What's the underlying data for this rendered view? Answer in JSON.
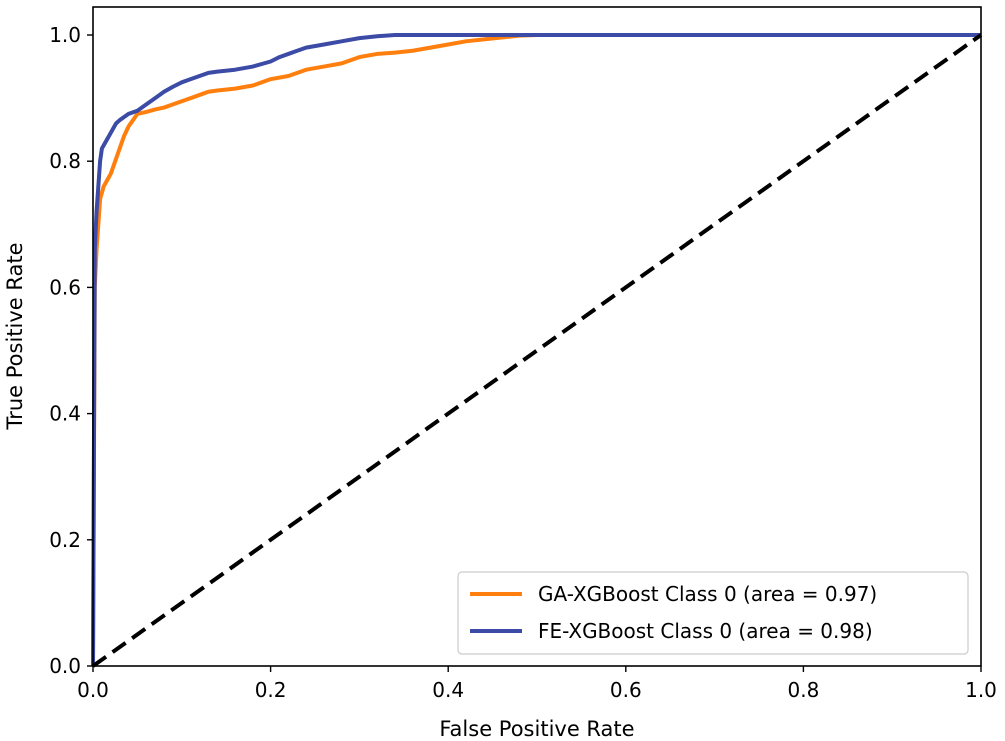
{
  "chart_data": {
    "type": "line",
    "title": "",
    "xlabel": "False Positive Rate",
    "ylabel": "True Positive Rate",
    "xlim": [
      0.0,
      1.0
    ],
    "ylim": [
      0.0,
      1.0
    ],
    "grid": false,
    "legend_position": "lower-right",
    "x_ticks": [
      "0.0",
      "0.2",
      "0.4",
      "0.6",
      "0.8",
      "1.0"
    ],
    "y_ticks": [
      "0.0",
      "0.2",
      "0.4",
      "0.6",
      "0.8",
      "1.0"
    ],
    "x_tick_values": [
      0.0,
      0.2,
      0.4,
      0.6,
      0.8,
      1.0
    ],
    "y_tick_values": [
      0.0,
      0.2,
      0.4,
      0.6,
      0.8,
      1.0
    ],
    "series": [
      {
        "name": "GA-XGBoost Class 0 (area = 0.97)",
        "color": "#ff7f0e",
        "x": [
          0.0,
          0.002,
          0.004,
          0.006,
          0.008,
          0.012,
          0.016,
          0.02,
          0.025,
          0.03,
          0.035,
          0.04,
          0.045,
          0.05,
          0.06,
          0.07,
          0.08,
          0.09,
          0.1,
          0.11,
          0.12,
          0.13,
          0.14,
          0.16,
          0.18,
          0.2,
          0.22,
          0.24,
          0.26,
          0.28,
          0.3,
          0.32,
          0.34,
          0.36,
          0.38,
          0.4,
          0.42,
          0.44,
          0.46,
          0.48,
          0.5,
          1.0
        ],
        "y": [
          0.0,
          0.6,
          0.66,
          0.7,
          0.74,
          0.76,
          0.77,
          0.78,
          0.8,
          0.82,
          0.84,
          0.855,
          0.865,
          0.875,
          0.878,
          0.882,
          0.885,
          0.89,
          0.895,
          0.9,
          0.905,
          0.91,
          0.912,
          0.915,
          0.92,
          0.93,
          0.935,
          0.945,
          0.95,
          0.955,
          0.965,
          0.97,
          0.972,
          0.975,
          0.98,
          0.985,
          0.99,
          0.993,
          0.996,
          0.999,
          1.0,
          1.0
        ]
      },
      {
        "name": "FE-XGBoost Class 0 (area = 0.98)",
        "color": "#3b4ba6",
        "x": [
          0.0,
          0.002,
          0.004,
          0.006,
          0.008,
          0.01,
          0.014,
          0.018,
          0.022,
          0.026,
          0.03,
          0.035,
          0.04,
          0.05,
          0.06,
          0.07,
          0.08,
          0.09,
          0.1,
          0.11,
          0.12,
          0.13,
          0.14,
          0.16,
          0.18,
          0.2,
          0.21,
          0.22,
          0.23,
          0.24,
          0.26,
          0.28,
          0.3,
          0.32,
          0.34,
          1.0
        ],
        "y": [
          0.0,
          0.66,
          0.72,
          0.76,
          0.8,
          0.82,
          0.83,
          0.84,
          0.85,
          0.86,
          0.865,
          0.87,
          0.875,
          0.88,
          0.89,
          0.9,
          0.91,
          0.918,
          0.925,
          0.93,
          0.935,
          0.94,
          0.942,
          0.945,
          0.95,
          0.958,
          0.965,
          0.97,
          0.975,
          0.98,
          0.985,
          0.99,
          0.995,
          0.998,
          1.0,
          1.0
        ]
      },
      {
        "name": "chance",
        "color": "#000000",
        "dashed": true,
        "show_in_legend": false,
        "x": [
          0.0,
          1.0
        ],
        "y": [
          0.0,
          1.0
        ]
      }
    ]
  }
}
